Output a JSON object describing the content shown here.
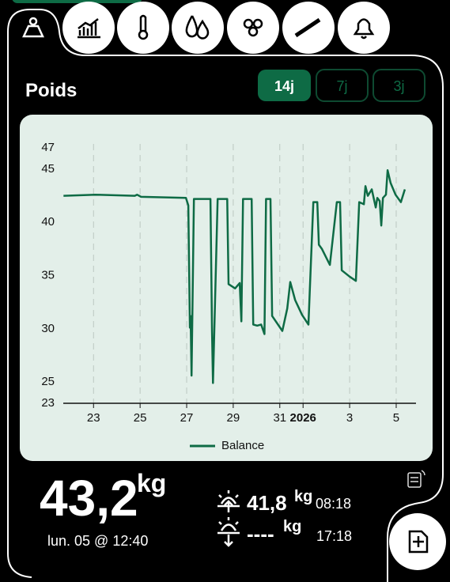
{
  "header": {
    "title": "Poids",
    "ranges": [
      "14j",
      "7j",
      "3j"
    ]
  },
  "chart_data": {
    "type": "line",
    "x": [
      21.71,
      23.07,
      24.77,
      24.87,
      25.04,
      26.97,
      27.07,
      27.14,
      27.17,
      27.21,
      27.31,
      28.02,
      28.09,
      28.13,
      28.33,
      28.74,
      28.8,
      29.08,
      29.28,
      29.35,
      29.42,
      29.79,
      29.86,
      30.03,
      30.2,
      30.34,
      30.41,
      30.6,
      30.67,
      31.11,
      31.32,
      31.45,
      31.66,
      31.96,
      32.23,
      32.44,
      32.61,
      32.68,
      32.81,
      33.15,
      33.45,
      33.59,
      33.66,
      34.0,
      34.27,
      34.41,
      34.61,
      34.68,
      34.78,
      34.95,
      35.12,
      35.19,
      35.29,
      35.36,
      35.43,
      35.56,
      35.63,
      35.76,
      35.97,
      36.2,
      36.37
    ],
    "series": [
      {
        "name": "Balance",
        "color": "#0e6b45",
        "values": [
          42.5,
          42.6,
          42.5,
          42.6,
          42.4,
          42.3,
          41.6,
          30.1,
          31.2,
          25.6,
          42.2,
          42.2,
          29.7,
          24.9,
          42.2,
          42.2,
          34.2,
          33.8,
          34.3,
          30.7,
          42.2,
          42.2,
          30.4,
          30.3,
          30.4,
          29.5,
          42.2,
          42.2,
          31.2,
          29.8,
          31.9,
          34.4,
          32.7,
          31.3,
          30.4,
          41.9,
          41.9,
          37.9,
          37.5,
          36.0,
          41.9,
          41.9,
          35.5,
          34.9,
          34.5,
          41.9,
          41.7,
          43.4,
          42.5,
          43.1,
          41.4,
          42.3,
          42.0,
          39.7,
          42.3,
          42.6,
          44.9,
          43.7,
          42.6,
          41.9,
          43.1
        ]
      }
    ],
    "xlim": [
      21.7,
      36.85
    ],
    "xticks": [
      23,
      25,
      27,
      29,
      31,
      {
        "value": 32,
        "label": "2026"
      },
      {
        "value": 34,
        "label": "3"
      },
      {
        "value": 36,
        "label": "5"
      }
    ],
    "ylim": [
      23,
      47
    ],
    "yticks": [
      23,
      25,
      30,
      35,
      40,
      45,
      47
    ],
    "grid": true
  },
  "summary": {
    "weight": "43,2",
    "unit": "kg",
    "timestamp": "lun. 05 @ 12:40",
    "morning": {
      "value": "41,8",
      "unit": "kg",
      "time": "08:18"
    },
    "evening": {
      "value": "----",
      "unit": "kg",
      "time": "17:18"
    }
  }
}
